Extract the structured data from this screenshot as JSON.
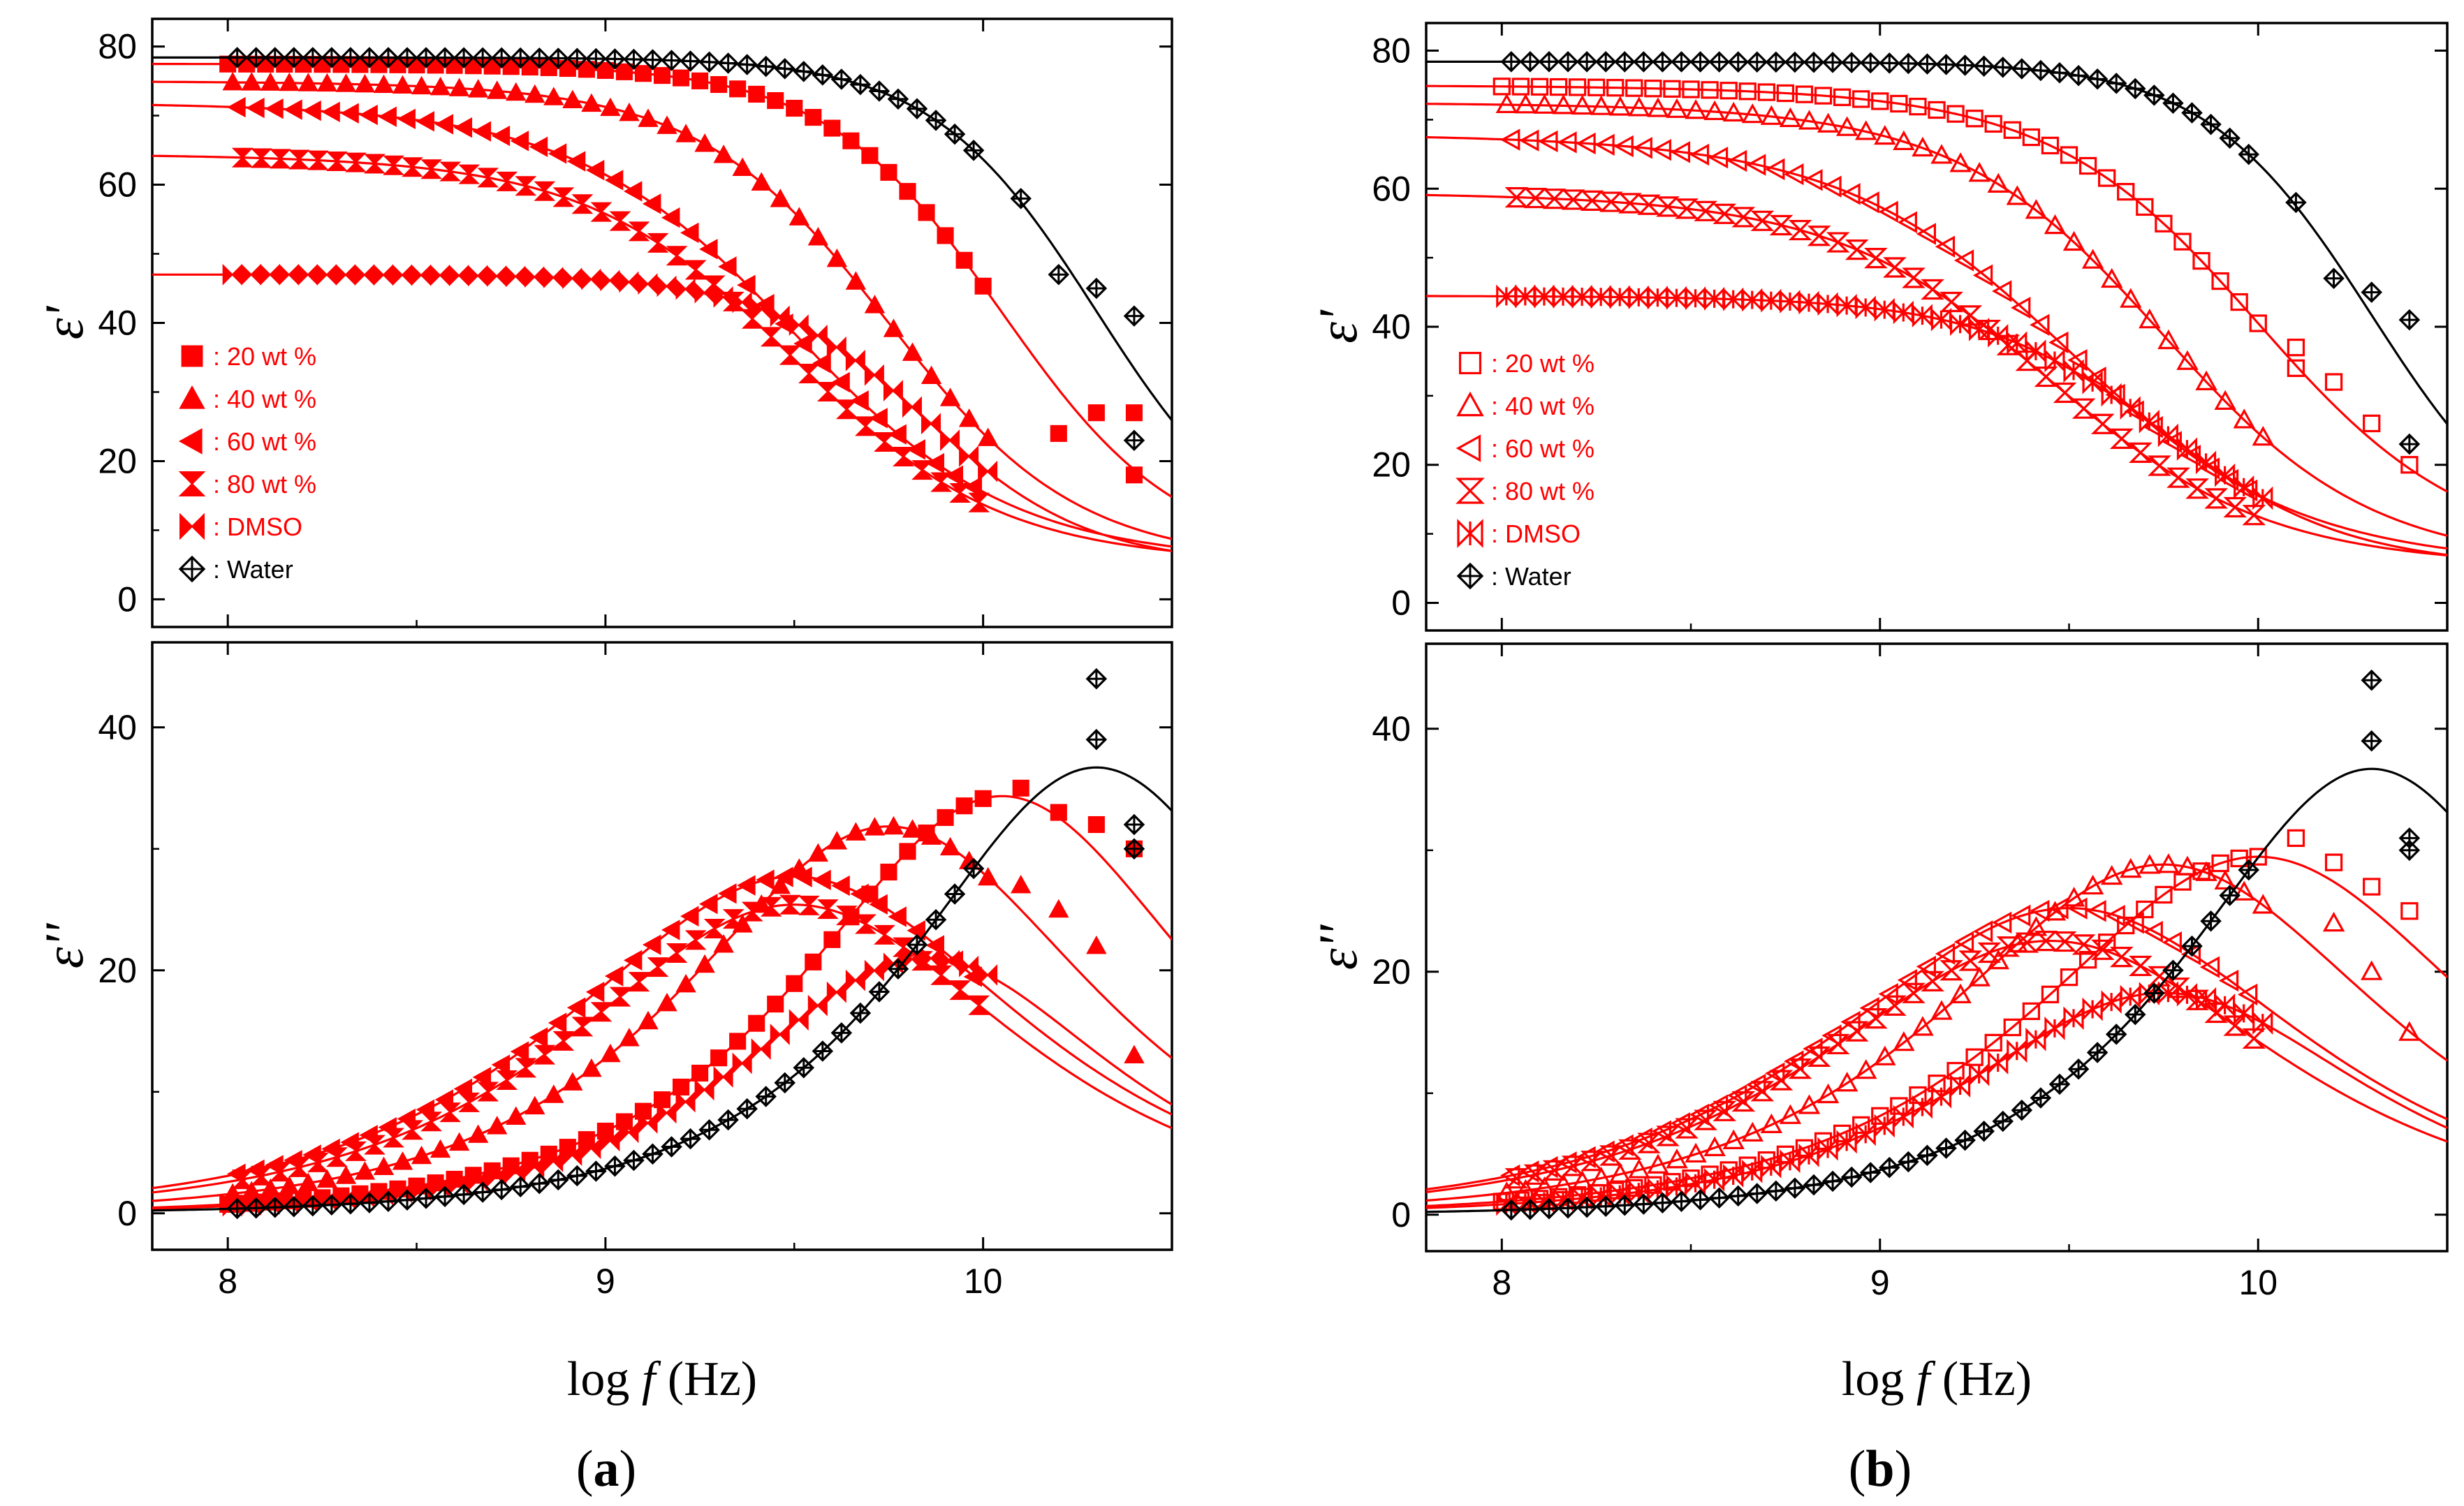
{
  "colors": {
    "solvent_mix": "#ff0000",
    "water": "#000000"
  },
  "x_axis_title": "log f (Hz)",
  "x_axis_title_parts": {
    "pre": "log",
    "italic": "f",
    "post": "(Hz)"
  },
  "chart_data": [
    {
      "type": "scatter",
      "panel": "(a)",
      "panel_letter": "a",
      "marker_style": "filled",
      "xlabel": "log f (Hz)",
      "xlim": [
        7.8,
        10.5
      ],
      "x_ticks": [
        8,
        9,
        10
      ],
      "legend_placement": "left, upper plot",
      "legend": [
        ": 20 wt %",
        ": 40 wt %",
        ": 60 wt %",
        ": 80 wt %",
        ": DMSO",
        ": Water"
      ],
      "top": {
        "ylabel": "ε'",
        "ylim": [
          -4,
          84
        ],
        "y_ticks": [
          0,
          20,
          40,
          60,
          80
        ],
        "series": [
          {
            "name": "20 wt %",
            "marker": "square",
            "color": "#ff0000",
            "es": 77.5,
            "einf": 5.5,
            "logf0": 10.05,
            "alpha": 0.03,
            "outliers": [
              [
                10.2,
                24
              ],
              [
                10.3,
                27
              ],
              [
                10.4,
                27
              ],
              [
                10.4,
                18
              ]
            ]
          },
          {
            "name": "40 wt %",
            "marker": "triangle-up",
            "color": "#ff0000",
            "es": 75,
            "einf": 5,
            "logf0": 9.75,
            "alpha": 0.06
          },
          {
            "name": "60 wt %",
            "marker": "triangle-left",
            "color": "#ff0000",
            "es": 72,
            "einf": 5,
            "logf0": 9.5,
            "alpha": 0.12
          },
          {
            "name": "80 wt %",
            "marker": "hourglass",
            "color": "#ff0000",
            "es": 64.5,
            "einf": 5,
            "logf0": 9.5,
            "alpha": 0.1
          },
          {
            "name": "DMSO",
            "marker": "bowtie",
            "color": "#ff0000",
            "es": 47,
            "einf": 5,
            "logf0": 9.85,
            "alpha": 0.0
          },
          {
            "name": "Water",
            "marker": "diamond-cross",
            "color": "#000000",
            "es": 78.4,
            "einf": 5,
            "logf0": 10.3,
            "alpha": 0.0,
            "outliers": [
              [
                10.1,
                58
              ],
              [
                10.2,
                47
              ],
              [
                10.3,
                45
              ],
              [
                10.4,
                41
              ],
              [
                10.4,
                23
              ]
            ]
          }
        ]
      },
      "bottom": {
        "ylabel": "ε''",
        "ylim": [
          -3,
          47
        ],
        "y_ticks": [
          0,
          20,
          40
        ],
        "series": [
          {
            "name": "20 wt %",
            "marker": "square",
            "color": "#ff0000",
            "es": 77.5,
            "einf": 5.5,
            "logf0": 10.05,
            "alpha": 0.03,
            "outliers": [
              [
                10.1,
                35
              ],
              [
                10.2,
                33
              ],
              [
                10.3,
                32
              ],
              [
                10.4,
                30
              ]
            ]
          },
          {
            "name": "40 wt %",
            "marker": "triangle-up",
            "color": "#ff0000",
            "es": 75,
            "einf": 5,
            "logf0": 9.75,
            "alpha": 0.06,
            "outliers": [
              [
                10.1,
                27
              ],
              [
                10.2,
                25
              ],
              [
                10.3,
                22
              ],
              [
                10.4,
                13
              ]
            ]
          },
          {
            "name": "60 wt %",
            "marker": "triangle-left",
            "color": "#ff0000",
            "es": 72,
            "einf": 5,
            "logf0": 9.5,
            "alpha": 0.12
          },
          {
            "name": "80 wt %",
            "marker": "hourglass",
            "color": "#ff0000",
            "es": 64.5,
            "einf": 5,
            "logf0": 9.5,
            "alpha": 0.1
          },
          {
            "name": "DMSO",
            "marker": "bowtie",
            "color": "#ff0000",
            "es": 47,
            "einf": 5,
            "logf0": 9.85,
            "alpha": 0.0
          },
          {
            "name": "Water",
            "marker": "diamond-cross",
            "color": "#000000",
            "es": 78.4,
            "einf": 5,
            "logf0": 10.3,
            "alpha": 0.0,
            "outliers": [
              [
                10.3,
                44
              ],
              [
                10.3,
                39
              ],
              [
                10.4,
                32
              ],
              [
                10.4,
                30
              ]
            ]
          }
        ]
      }
    },
    {
      "type": "scatter",
      "panel": "(b)",
      "panel_letter": "b",
      "marker_style": "open",
      "xlabel": "log f (Hz)",
      "xlim": [
        7.8,
        10.5
      ],
      "x_ticks": [
        8,
        9,
        10
      ],
      "legend_placement": "left, upper plot",
      "legend": [
        ": 20 wt %",
        ": 40 wt %",
        ": 60 wt %",
        ": 80 wt %",
        ": DMSO",
        ": Water"
      ],
      "top": {
        "ylabel": "ε'",
        "ylim": [
          -4,
          84
        ],
        "y_ticks": [
          0,
          20,
          40,
          60,
          80
        ],
        "series": [
          {
            "name": "20 wt %",
            "marker": "square",
            "color": "#ff0000",
            "es": 75,
            "einf": 6,
            "logf0": 10.0,
            "alpha": 0.1,
            "outliers": [
              [
                10.1,
                37
              ],
              [
                10.1,
                34
              ],
              [
                10.2,
                32
              ],
              [
                10.3,
                26
              ],
              [
                10.4,
                20
              ]
            ]
          },
          {
            "name": "40 wt %",
            "marker": "triangle-up",
            "color": "#ff0000",
            "es": 72.5,
            "einf": 5,
            "logf0": 9.75,
            "alpha": 0.1
          },
          {
            "name": "60 wt %",
            "marker": "triangle-left",
            "color": "#ff0000",
            "es": 68,
            "einf": 5,
            "logf0": 9.5,
            "alpha": 0.14
          },
          {
            "name": "80 wt %",
            "marker": "hourglass",
            "color": "#ff0000",
            "es": 59.5,
            "einf": 5,
            "logf0": 9.45,
            "alpha": 0.12
          },
          {
            "name": "DMSO",
            "marker": "bowtie",
            "color": "#ff0000",
            "es": 44.5,
            "einf": 5,
            "logf0": 9.75,
            "alpha": 0.05
          },
          {
            "name": "Water",
            "marker": "diamond-cross",
            "color": "#000000",
            "es": 78.4,
            "einf": 5,
            "logf0": 10.3,
            "alpha": 0.0,
            "outliers": [
              [
                10.1,
                58
              ],
              [
                10.2,
                47
              ],
              [
                10.3,
                45
              ],
              [
                10.4,
                41
              ],
              [
                10.4,
                23
              ]
            ]
          }
        ]
      },
      "bottom": {
        "ylabel": "ε''",
        "ylim": [
          -3,
          47
        ],
        "y_ticks": [
          0,
          20,
          40
        ],
        "series": [
          {
            "name": "20 wt %",
            "marker": "square",
            "color": "#ff0000",
            "es": 75,
            "einf": 6,
            "logf0": 10.0,
            "alpha": 0.1,
            "outliers": [
              [
                10.1,
                31
              ],
              [
                10.2,
                29
              ],
              [
                10.3,
                27
              ],
              [
                10.4,
                25
              ]
            ]
          },
          {
            "name": "40 wt %",
            "marker": "triangle-up",
            "color": "#ff0000",
            "es": 72.5,
            "einf": 5,
            "logf0": 9.75,
            "alpha": 0.1,
            "outliers": [
              [
                10.2,
                24
              ],
              [
                10.3,
                20
              ],
              [
                10.4,
                15
              ]
            ]
          },
          {
            "name": "60 wt %",
            "marker": "triangle-left",
            "color": "#ff0000",
            "es": 68,
            "einf": 5,
            "logf0": 9.5,
            "alpha": 0.14
          },
          {
            "name": "80 wt %",
            "marker": "hourglass",
            "color": "#ff0000",
            "es": 59.5,
            "einf": 5,
            "logf0": 9.45,
            "alpha": 0.12
          },
          {
            "name": "DMSO",
            "marker": "bowtie",
            "color": "#ff0000",
            "es": 44.5,
            "einf": 5,
            "logf0": 9.75,
            "alpha": 0.05
          },
          {
            "name": "Water",
            "marker": "diamond-cross",
            "color": "#000000",
            "es": 78.4,
            "einf": 5,
            "logf0": 10.3,
            "alpha": 0.0,
            "outliers": [
              [
                10.3,
                44
              ],
              [
                10.3,
                39
              ],
              [
                10.4,
                31
              ],
              [
                10.4,
                30
              ]
            ]
          }
        ]
      }
    }
  ]
}
